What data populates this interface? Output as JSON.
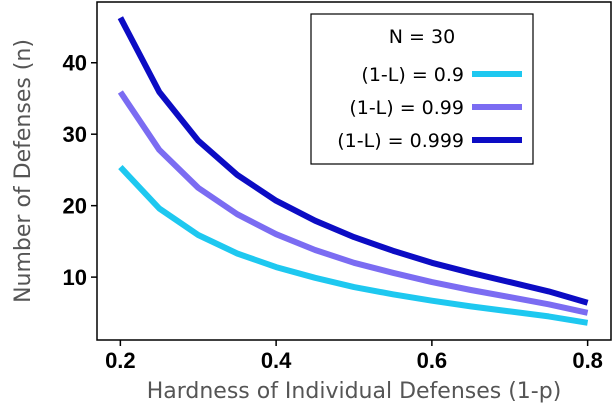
{
  "chart_data": {
    "type": "line",
    "title": "",
    "xlabel": "Hardness of Individual Defenses (1-p)",
    "ylabel": "Number of Defenses (n)",
    "xlim": [
      0.17,
      0.83
    ],
    "ylim": [
      1.2,
      48.5
    ],
    "xticks": [
      0.2,
      0.4,
      0.6,
      0.8
    ],
    "xtick_labels": [
      "0.2",
      "0.4",
      "0.6",
      "0.8"
    ],
    "yticks": [
      10,
      20,
      30,
      40
    ],
    "ytick_labels": [
      "10",
      "20",
      "30",
      "40"
    ],
    "grid": false,
    "legend": {
      "title": "N = 30",
      "placement": "top-right"
    },
    "series": [
      {
        "name": "(1-L) = 0.9",
        "color": "#1ec8f0",
        "x": [
          0.2,
          0.25,
          0.3,
          0.35,
          0.4,
          0.45,
          0.5,
          0.55,
          0.6,
          0.65,
          0.7,
          0.75,
          0.8
        ],
        "y": [
          25.4,
          19.6,
          15.9,
          13.3,
          11.4,
          9.9,
          8.6,
          7.6,
          6.7,
          5.9,
          5.2,
          4.5,
          3.6
        ]
      },
      {
        "name": "(1-L) = 0.99",
        "color": "#7b6cf2",
        "x": [
          0.2,
          0.25,
          0.3,
          0.35,
          0.4,
          0.45,
          0.5,
          0.55,
          0.6,
          0.65,
          0.7,
          0.75,
          0.8
        ],
        "y": [
          35.9,
          27.8,
          22.5,
          18.8,
          16.0,
          13.8,
          12.0,
          10.6,
          9.3,
          8.2,
          7.2,
          6.2,
          5.0
        ]
      },
      {
        "name": "(1-L) = 0.999",
        "color": "#0c0cc4",
        "x": [
          0.2,
          0.25,
          0.3,
          0.35,
          0.4,
          0.45,
          0.5,
          0.55,
          0.6,
          0.65,
          0.7,
          0.75,
          0.8
        ],
        "y": [
          46.3,
          35.9,
          29.1,
          24.3,
          20.7,
          17.9,
          15.6,
          13.7,
          12.0,
          10.6,
          9.3,
          8.0,
          6.4
        ]
      }
    ]
  }
}
